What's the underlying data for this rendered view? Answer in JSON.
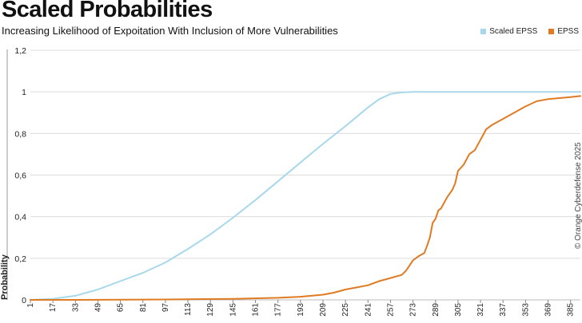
{
  "title": "Scaled Probabilities",
  "subtitle": "Increasing Likelihood of Expoitation With Inclusion of More Vulnerabilities",
  "copyright": "© Orange Cyberdefense 2025",
  "colors": {
    "scaled": "#a8d8ec",
    "epss": "#e07b23",
    "grid": "#dcdcdc",
    "axis": "#444444"
  },
  "chart_data": {
    "type": "line",
    "title": "Scaled Probabilities",
    "subtitle": "Increasing Likelihood of Expoitation With Inclusion of More Vulnerabilities",
    "xlabel": "",
    "ylabel": "Probability",
    "xlim": [
      1,
      392
    ],
    "ylim": [
      0,
      1.2
    ],
    "yticks": [
      "0",
      "0,2",
      "0,4",
      "0,6",
      "0,8",
      "1",
      "1,2"
    ],
    "yticks_values": [
      0,
      0.2,
      0.4,
      0.6,
      0.8,
      1.0,
      1.2
    ],
    "xticks": [
      "1",
      "17",
      "33",
      "49",
      "65",
      "81",
      "97",
      "113",
      "129",
      "145",
      "161",
      "177",
      "193",
      "209",
      "225",
      "241",
      "257",
      "273",
      "289",
      "305",
      "321",
      "337",
      "353",
      "369",
      "385"
    ],
    "legend": "top-right",
    "series": [
      {
        "name": "Scaled EPSS",
        "color": "#a8d8ec",
        "x": [
          1,
          17,
          33,
          49,
          65,
          81,
          97,
          113,
          129,
          145,
          161,
          177,
          193,
          209,
          225,
          241,
          249,
          257,
          265,
          273,
          289,
          305,
          321,
          337,
          353,
          369,
          385,
          392
        ],
        "y": [
          0.0,
          0.005,
          0.02,
          0.05,
          0.09,
          0.13,
          0.18,
          0.245,
          0.315,
          0.395,
          0.48,
          0.57,
          0.66,
          0.75,
          0.835,
          0.925,
          0.965,
          0.99,
          0.997,
          1.0,
          1.0,
          1.0,
          1.0,
          1.0,
          1.0,
          1.0,
          1.0,
          1.0
        ]
      },
      {
        "name": "EPSS",
        "color": "#e07b23",
        "x": [
          1,
          33,
          97,
          145,
          177,
          193,
          209,
          217,
          225,
          233,
          241,
          249,
          257,
          265,
          268,
          271,
          273,
          277,
          281,
          283,
          285,
          287,
          289,
          291,
          293,
          297,
          301,
          303,
          305,
          309,
          313,
          317,
          321,
          325,
          329,
          337,
          345,
          353,
          361,
          369,
          377,
          385,
          392
        ],
        "y": [
          0.0,
          0.0,
          0.002,
          0.005,
          0.01,
          0.015,
          0.025,
          0.035,
          0.05,
          0.06,
          0.07,
          0.09,
          0.105,
          0.12,
          0.14,
          0.17,
          0.19,
          0.21,
          0.225,
          0.26,
          0.3,
          0.37,
          0.39,
          0.43,
          0.44,
          0.49,
          0.53,
          0.56,
          0.62,
          0.65,
          0.7,
          0.72,
          0.77,
          0.82,
          0.84,
          0.87,
          0.9,
          0.93,
          0.955,
          0.965,
          0.97,
          0.975,
          0.98
        ]
      }
    ]
  }
}
